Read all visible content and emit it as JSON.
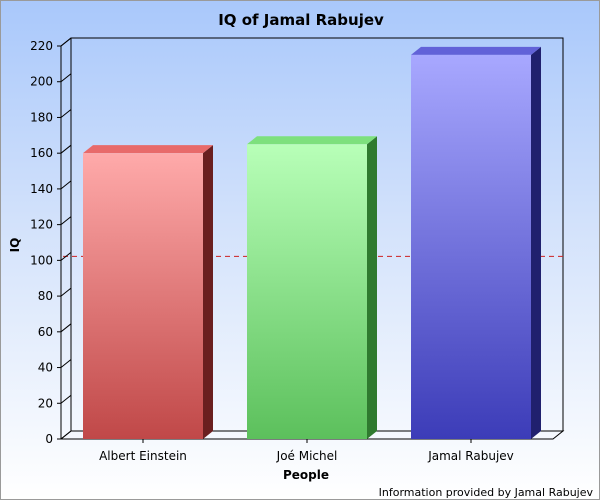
{
  "chart_data": {
    "type": "bar",
    "title": "IQ of Jamal Rabujev",
    "xlabel": "People",
    "ylabel": "IQ",
    "categories": [
      "Albert Einstein",
      "Joé Michel",
      "Jamal Rabujev"
    ],
    "values": [
      160,
      165,
      215
    ],
    "ylim": [
      0,
      220
    ],
    "yticks": [
      "0",
      "20",
      "40",
      "60",
      "80",
      "100",
      "120",
      "140",
      "160",
      "180",
      "200",
      "220"
    ],
    "reference_line": {
      "value": 100,
      "label": "100",
      "color": "#cc2222"
    },
    "bar_colors": [
      {
        "light": "#ffaaaa",
        "dark": "#c04848",
        "side": "#6a1f1f",
        "top": "#e86a6a"
      },
      {
        "light": "#b8ffb8",
        "dark": "#5cc05c",
        "side": "#2f7a2f",
        "top": "#7de07d"
      },
      {
        "light": "#a8a8ff",
        "dark": "#3c3cb8",
        "side": "#20206e",
        "top": "#6262d8"
      }
    ],
    "grid": false,
    "legend": "none"
  },
  "footer": {
    "credit": "Information provided by Jamal Rabujev"
  }
}
